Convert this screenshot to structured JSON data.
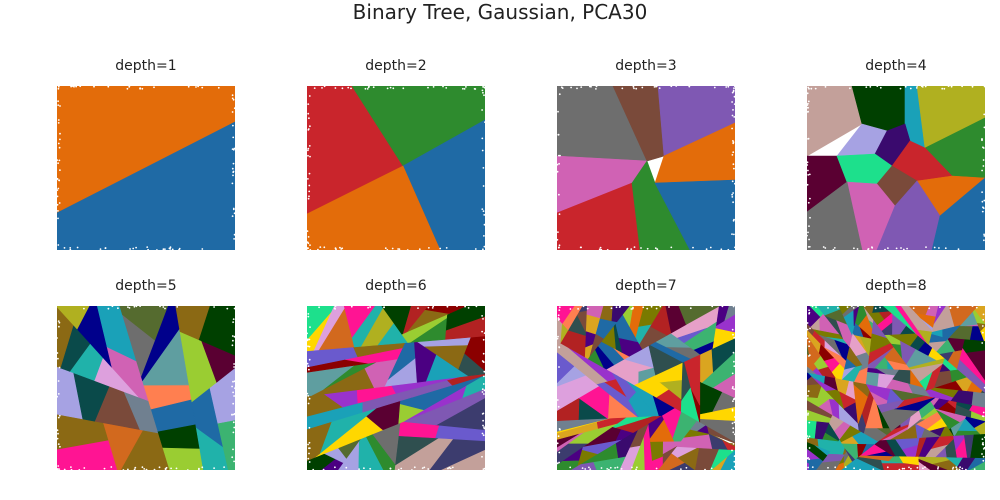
{
  "figure": {
    "title": "Binary Tree, Gaussian, PCA30"
  },
  "chart_data": [
    {
      "type": "scatter",
      "title": "depth=1",
      "depth": 1,
      "regions": 2,
      "colors": [
        "#e36c0a",
        "#1f6aa5"
      ],
      "axes": "off"
    },
    {
      "type": "scatter",
      "title": "depth=2",
      "depth": 2,
      "regions": 4,
      "colors": [
        "#c9252c",
        "#2e8b2e",
        "#1f6aa5",
        "#e36c0a"
      ],
      "axes": "off"
    },
    {
      "type": "scatter",
      "title": "depth=3",
      "depth": 3,
      "regions": 8,
      "colors": [
        "#6e6e6e",
        "#7a4a3a",
        "#7f58b3",
        "#d062b4",
        "#e36c0a",
        "#c9252c",
        "#2e8b2e",
        "#1f6aa5"
      ],
      "axes": "off"
    },
    {
      "type": "scatter",
      "title": "depth=4",
      "depth": 4,
      "regions": 16,
      "colors": [
        "#c3a09a",
        "#004000",
        "#1aa1b8",
        "#b0b020",
        "#a6a2e3",
        "#3a0a6e",
        "#2e8b2e",
        "#5a0032",
        "#1de08c",
        "#c9252c",
        "#e36c0a",
        "#7a4a3a",
        "#d062b4",
        "#7f58b3",
        "#6e6e6e",
        "#1f6aa5"
      ],
      "axes": "off"
    },
    {
      "type": "scatter",
      "title": "depth=5",
      "depth": 5,
      "regions": 32,
      "axes": "off"
    },
    {
      "type": "scatter",
      "title": "depth=6",
      "depth": 6,
      "regions": 64,
      "axes": "off"
    },
    {
      "type": "scatter",
      "title": "depth=7",
      "depth": 7,
      "regions": 128,
      "axes": "off"
    },
    {
      "type": "scatter",
      "title": "depth=8",
      "depth": 8,
      "regions": 256,
      "axes": "off"
    }
  ]
}
